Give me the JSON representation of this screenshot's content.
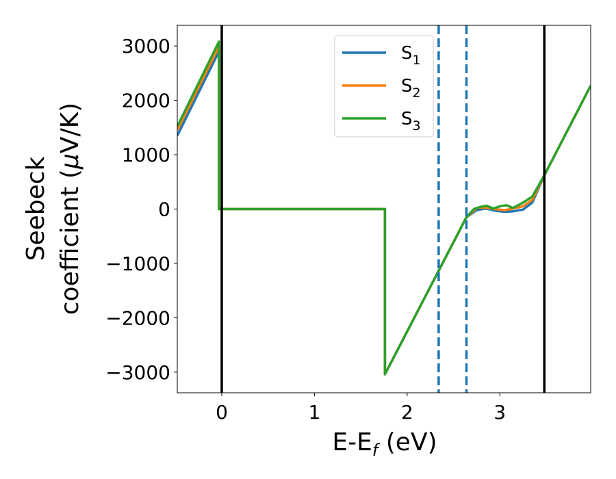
{
  "chart_data": {
    "type": "line",
    "xlabel": {
      "main": "E-E",
      "sub": "f",
      "rest": " (eV)"
    },
    "ylabel": {
      "line1": "Seebeck",
      "line2_pre": "coefficient  (",
      "line2_mu": "μ",
      "line2_post": "V/K)"
    },
    "xlim": [
      -0.48,
      3.98
    ],
    "ylim": [
      -3380,
      3380
    ],
    "xticks": [
      0,
      1,
      2,
      3
    ],
    "xtick_labels": [
      "0",
      "1",
      "2",
      "3"
    ],
    "yticks": [
      -3000,
      -2000,
      -1000,
      0,
      1000,
      2000,
      3000
    ],
    "ytick_labels": [
      "−3000",
      "−2000",
      "−1000",
      "0",
      "1000",
      "2000",
      "3000"
    ],
    "grid": false,
    "legend_position": "top-center",
    "vlines": [
      {
        "x": 0.0,
        "style": "solid",
        "color": "#000000"
      },
      {
        "x": 2.34,
        "style": "dashed",
        "color": "#1f77b4"
      },
      {
        "x": 2.64,
        "style": "dashed",
        "color": "#1f77b4"
      },
      {
        "x": 3.48,
        "style": "solid",
        "color": "#000000"
      }
    ],
    "series": [
      {
        "name": "S",
        "name_sub": "1",
        "color": "#1f77b4",
        "x": [
          -0.48,
          -0.03,
          -0.03,
          1.76,
          1.76,
          2.64,
          2.75,
          2.85,
          2.95,
          3.05,
          3.15,
          3.25,
          3.35,
          3.48,
          3.98
        ],
        "y": [
          1350,
          2900,
          0,
          0,
          -3040,
          -150,
          -20,
          10,
          -30,
          -50,
          -40,
          -10,
          120,
          620,
          2270
        ]
      },
      {
        "name": "S",
        "name_sub": "2",
        "color": "#ff7f0e",
        "x": [
          -0.48,
          -0.03,
          -0.03,
          1.76,
          1.76,
          2.64,
          2.75,
          2.85,
          2.95,
          3.05,
          3.15,
          3.25,
          3.35,
          3.48,
          3.98
        ],
        "y": [
          1450,
          2990,
          0,
          0,
          -3040,
          -150,
          20,
          30,
          0,
          -20,
          10,
          50,
          170,
          620,
          2270
        ]
      },
      {
        "name": "S",
        "name_sub": "3",
        "color": "#2ca02c",
        "x": [
          -0.48,
          -0.03,
          -0.03,
          1.76,
          1.76,
          2.64,
          2.72,
          2.79,
          2.86,
          2.93,
          3.0,
          3.07,
          3.14,
          3.21,
          3.28,
          3.35,
          3.48,
          3.98
        ],
        "y": [
          1520,
          3080,
          0,
          0,
          -3040,
          -150,
          0,
          40,
          60,
          10,
          50,
          70,
          20,
          80,
          150,
          230,
          620,
          2270
        ]
      }
    ]
  }
}
